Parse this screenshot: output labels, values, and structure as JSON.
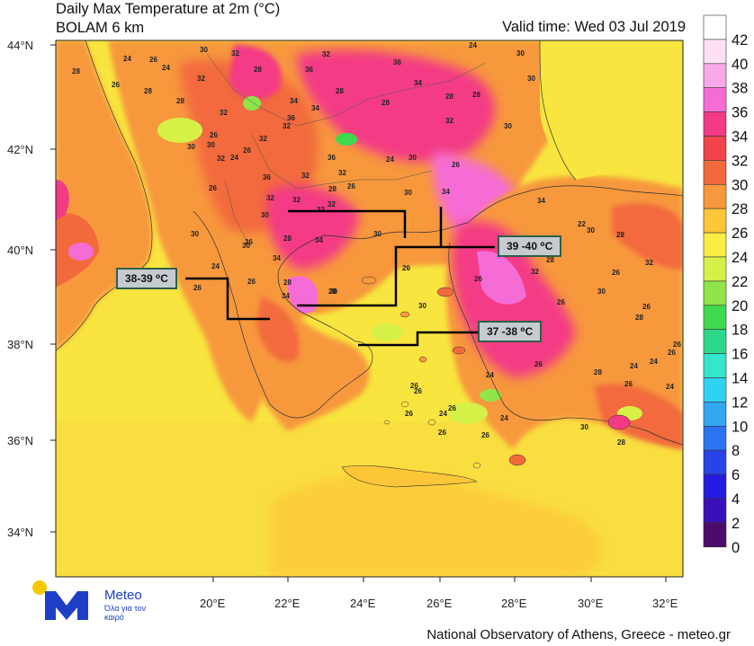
{
  "header": {
    "title_line1": "Daily Max Temperature at 2m (°C)",
    "title_line2": "BOLAM 6 km",
    "valid_time": "Valid time: Wed 03 Jul 2019"
  },
  "axes": {
    "lat_labels": [
      "44°N",
      "42°N",
      "40°N",
      "38°N",
      "36°N",
      "34°N"
    ],
    "lon_labels": [
      "20°E",
      "22°E",
      "24°E",
      "26°E",
      "28°E",
      "30°E",
      "32°E"
    ]
  },
  "legend": {
    "labels": [
      "42",
      "40",
      "38",
      "36",
      "34",
      "32",
      "30",
      "28",
      "26",
      "24",
      "22",
      "20",
      "18",
      "16",
      "14",
      "12",
      "10",
      "8",
      "6",
      "4",
      "2",
      "0"
    ],
    "colors": [
      "#ffffff",
      "#fde0f4",
      "#f9a8ea",
      "#f56cd6",
      "#f33a86",
      "#f0444a",
      "#f26a3c",
      "#f7983c",
      "#fcc638",
      "#f9ed43",
      "#d6f048",
      "#8fe54a",
      "#3fd94f",
      "#2ed88a",
      "#35e6cc",
      "#2fd3f1",
      "#33a6f4",
      "#2b74f0",
      "#2744e6",
      "#241ae0",
      "#3a10b8",
      "#4d0a6a"
    ],
    "colors_note": "colour for each band from top"
  },
  "annotations": [
    {
      "label": "38-39 ⁰C"
    },
    {
      "label": "39 -40 ⁰C"
    },
    {
      "label": "37 -38 ⁰C"
    }
  ],
  "temp_labels": [
    "28",
    "24",
    "26",
    "26",
    "28",
    "28",
    "30",
    "24",
    "32",
    "32",
    "28",
    "34",
    "36",
    "36",
    "32",
    "36",
    "34",
    "24",
    "30",
    "30",
    "30",
    "28",
    "28",
    "32",
    "26",
    "30",
    "30",
    "24",
    "28",
    "28",
    "34",
    "32",
    "32",
    "36",
    "32",
    "26",
    "32",
    "28",
    "32",
    "32",
    "34",
    "34",
    "28",
    "34",
    "26",
    "24",
    "26",
    "26",
    "26",
    "32",
    "30",
    "30",
    "30",
    "26",
    "32",
    "24",
    "26",
    "30",
    "30",
    "36",
    "28",
    "32",
    "32",
    "28",
    "30",
    "30",
    "34",
    "30",
    "26",
    "26",
    "22",
    "28",
    "26",
    "30",
    "34",
    "32",
    "28",
    "30",
    "26",
    "32",
    "26",
    "24",
    "24",
    "26",
    "24",
    "28",
    "26",
    "26",
    "28",
    "26",
    "24",
    "30",
    "28",
    "26",
    "26",
    "26",
    "26",
    "24",
    "26",
    "24",
    "26"
  ],
  "footer": {
    "brand": "Meteo",
    "tagline": "Όλα για τον καιρό",
    "credit": "National Observatory of Athens, Greece - meteo.gr"
  }
}
